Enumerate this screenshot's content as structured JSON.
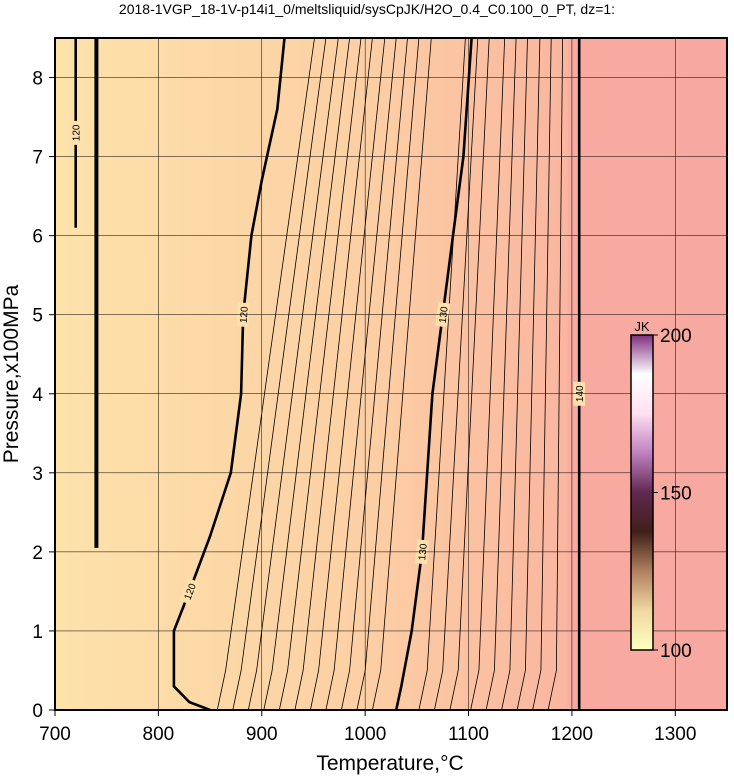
{
  "chart_data": {
    "type": "contour",
    "title": "2018-1VGP_18-1V-p14i1_0/meltsliquid/sysCpJK/H2O_0.4_C0.100_0_PT, dz=1:",
    "x_label": "Temperature,°C",
    "y_label": "Pressure,x100MPa",
    "xlim": [
      700,
      1350
    ],
    "ylim": [
      0,
      8.5
    ],
    "xticks": [
      700,
      800,
      900,
      1000,
      1100,
      1200,
      1300
    ],
    "yticks": [
      0,
      1,
      2,
      3,
      4,
      5,
      6,
      7,
      8
    ],
    "grid": true,
    "contours": [
      {
        "label": "120",
        "x": [
          850,
          830,
          815,
          815,
          830,
          850,
          870,
          880,
          882,
          890,
          900,
          915,
          922
        ],
        "y": [
          0,
          0.1,
          0.3,
          1,
          1.5,
          2.2,
          3,
          4,
          5,
          6,
          6.7,
          7.6,
          8.5
        ]
      },
      {
        "label": "130",
        "x": [
          1030,
          1035,
          1045,
          1055,
          1060,
          1065,
          1075,
          1085,
          1095,
          1103
        ],
        "y": [
          0,
          0.3,
          1,
          2,
          3,
          4,
          5,
          6,
          7,
          8.5
        ]
      },
      {
        "label": "140",
        "x": [
          1207,
          1207,
          1207
        ],
        "y": [
          0,
          4,
          8.5
        ]
      },
      {
        "label": "120",
        "x": [
          720,
          720,
          720
        ],
        "y": [
          6.1,
          7.3,
          8.5
        ]
      }
    ],
    "thin_contours": [
      {
        "x": [
          740,
          740
        ],
        "y": [
          2.05,
          8.5
        ]
      },
      {
        "x": [
          857,
          865,
          951
        ],
        "y": [
          0,
          0.5,
          8.5
        ]
      },
      {
        "x": [
          872,
          880,
          962
        ],
        "y": [
          0,
          0.5,
          8.5
        ]
      },
      {
        "x": [
          887,
          895,
          974
        ],
        "y": [
          0,
          0.5,
          8.5
        ]
      },
      {
        "x": [
          902,
          910,
          985
        ],
        "y": [
          0,
          0.5,
          8.5
        ]
      },
      {
        "x": [
          917,
          925,
          996
        ],
        "y": [
          0,
          0.5,
          8.5
        ]
      },
      {
        "x": [
          932,
          940,
          1007
        ],
        "y": [
          0,
          0.5,
          8.5
        ]
      },
      {
        "x": [
          947,
          955,
          1019
        ],
        "y": [
          0,
          0.5,
          8.5
        ]
      },
      {
        "x": [
          962,
          970,
          1030
        ],
        "y": [
          0,
          0.5,
          8.5
        ]
      },
      {
        "x": [
          977,
          985,
          1041
        ],
        "y": [
          0,
          0.5,
          8.5
        ]
      },
      {
        "x": [
          992,
          1000,
          1052
        ],
        "y": [
          0,
          0.5,
          8.5
        ]
      },
      {
        "x": [
          1007,
          1015,
          1064
        ],
        "y": [
          0,
          0.5,
          8.5
        ]
      },
      {
        "x": [
          1052,
          1060,
          1097
        ],
        "y": [
          0,
          0.5,
          8.5
        ]
      },
      {
        "x": [
          1067,
          1075,
          1109
        ],
        "y": [
          0,
          0.5,
          8.5
        ]
      },
      {
        "x": [
          1082,
          1090,
          1120
        ],
        "y": [
          0,
          0.5,
          8.5
        ]
      },
      {
        "x": [
          1102,
          1110,
          1135
        ],
        "y": [
          0,
          0.5,
          8.5
        ]
      },
      {
        "x": [
          1117,
          1125,
          1146
        ],
        "y": [
          0,
          0.5,
          8.5
        ]
      },
      {
        "x": [
          1132,
          1140,
          1157
        ],
        "y": [
          0,
          0.5,
          8.5
        ]
      },
      {
        "x": [
          1147,
          1155,
          1169
        ],
        "y": [
          0,
          0.5,
          8.5
        ]
      },
      {
        "x": [
          1162,
          1170,
          1180
        ],
        "y": [
          0,
          0.5,
          8.5
        ]
      },
      {
        "x": [
          1177,
          1185,
          1191
        ],
        "y": [
          0,
          0.5,
          8.5
        ]
      }
    ],
    "colorbar": {
      "label": "JK",
      "lim": [
        100,
        200
      ],
      "ticks": [
        100,
        150,
        200
      ],
      "colors": [
        "#ffffc0",
        "#f0d8a0",
        "#b08060",
        "#402018",
        "#602850",
        "#c080c0",
        "#ffe0f0",
        "#ffffff",
        "#803080"
      ]
    }
  }
}
